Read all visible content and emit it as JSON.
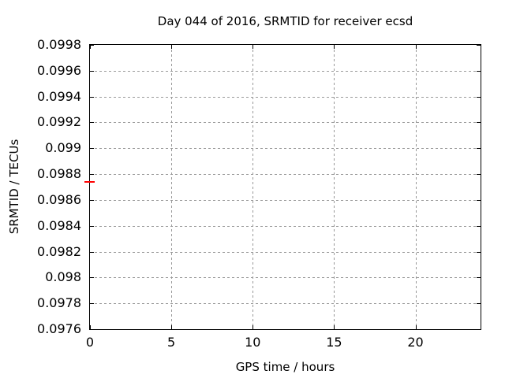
{
  "window": {
    "background_color": "#ffffff"
  },
  "chart_data": {
    "type": "scatter",
    "title": "Day 044 of 2016, SRMTID for receiver ecsd",
    "xlabel": "GPS time / hours",
    "ylabel": "SRMTID / TECUs",
    "xlim": [
      0,
      24
    ],
    "ylim": [
      0.0976,
      0.0998
    ],
    "xticks": {
      "values": [
        0,
        5,
        10,
        15,
        20
      ],
      "labels": [
        "0",
        "5",
        "10",
        "15",
        "20"
      ]
    },
    "yticks": {
      "values": [
        0.0976,
        0.0978,
        0.098,
        0.0982,
        0.0984,
        0.0986,
        0.0988,
        0.099,
        0.0992,
        0.0994,
        0.0996,
        0.0998
      ],
      "labels": [
        "0.0976",
        "0.0978",
        "0.098",
        "0.0982",
        "0.0984",
        "0.0986",
        "0.0988",
        "0.099",
        "0.0992",
        "0.0994",
        "0.0996",
        "0.0998"
      ]
    },
    "grid": {
      "show": true,
      "style": "dotted",
      "color": "#999999"
    },
    "legend_position": "none",
    "series": [
      {
        "name": "SRMTID",
        "marker": "horizontal-dash",
        "color": "#ff0000",
        "points": [
          {
            "x": 0,
            "y": 0.09874
          }
        ]
      }
    ]
  },
  "colors": {
    "border": "#000000",
    "grid": "#999999",
    "text": "#000000",
    "point": "#ff0000"
  }
}
